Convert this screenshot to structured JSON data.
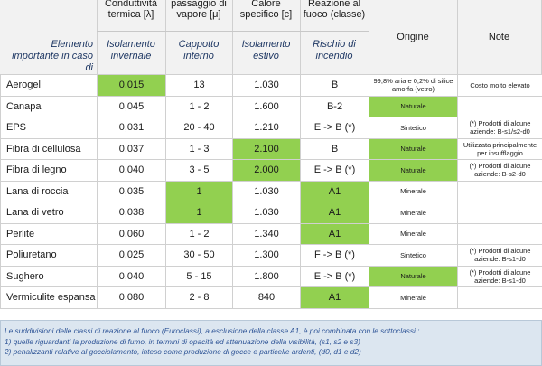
{
  "header": {
    "left_label": "Elemento importante in caso di",
    "columns": [
      {
        "top": "Conduttività termica [λ]",
        "bottom": "Isolamento invernale"
      },
      {
        "top": "passaggio di vapore [μ]",
        "bottom": "Cappotto interno"
      },
      {
        "top": "Calore specifico [c]",
        "bottom": "Isolamento estivo"
      },
      {
        "top": "Reazione al fuoco (classe)",
        "bottom": "Rischio di incendio"
      }
    ],
    "origine": "Origine",
    "note": "Note"
  },
  "rows": [
    {
      "name": "Aerogel",
      "cond": "0,015",
      "vap": "13",
      "cal": "1.030",
      "fuoco": "B",
      "origine": "99,8% aria e 0,2% di silice amorfa (vetro)",
      "note": "Costo molto elevato"
    },
    {
      "name": "Canapa",
      "cond": "0,045",
      "vap": "1 - 2",
      "cal": "1.600",
      "fuoco": "B-2",
      "origine": "Naturale",
      "note": ""
    },
    {
      "name": "EPS",
      "cond": "0,031",
      "vap": "20 - 40",
      "cal": "1.210",
      "fuoco": "E -> B (*)",
      "origine": "Sintetico",
      "note": "(*) Prodotti di alcune aziende: B-s1/s2-d0"
    },
    {
      "name": "Fibra di cellulosa",
      "cond": "0,037",
      "vap": "1 - 3",
      "cal": "2.100",
      "fuoco": "B",
      "origine": "Naturale",
      "note": "Utilizzata principalmente per insufflaggio"
    },
    {
      "name": "Fibra di legno",
      "cond": "0,040",
      "vap": "3 - 5",
      "cal": "2.000",
      "fuoco": "E -> B (*)",
      "origine": "Naturale",
      "note": "(*) Prodotti di alcune aziende: B-s2-d0"
    },
    {
      "name": "Lana di roccia",
      "cond": "0,035",
      "vap": "1",
      "cal": "1.030",
      "fuoco": "A1",
      "origine": "Minerale",
      "note": ""
    },
    {
      "name": "Lana di vetro",
      "cond": "0,038",
      "vap": "1",
      "cal": "1.030",
      "fuoco": "A1",
      "origine": "Minerale",
      "note": ""
    },
    {
      "name": "Perlite",
      "cond": "0,060",
      "vap": "1 - 2",
      "cal": "1.340",
      "fuoco": "A1",
      "origine": "Minerale",
      "note": ""
    },
    {
      "name": "Poliuretano",
      "cond": "0,025",
      "vap": "30 - 50",
      "cal": "1.300",
      "fuoco": "F -> B (*)",
      "origine": "Sintetico",
      "note": "(*) Prodotti di alcune aziende: B-s1-d0"
    },
    {
      "name": "Sughero",
      "cond": "0,040",
      "vap": "5 - 15",
      "cal": "1.800",
      "fuoco": "E -> B (*)",
      "origine": "Naturale",
      "note": "(*) Prodotti di alcune aziende: B-s1-d0"
    },
    {
      "name": "Vermiculite espansa",
      "cond": "0,080",
      "vap": "2 - 8",
      "cal": "840",
      "fuoco": "A1",
      "origine": "Minerale",
      "note": ""
    }
  ],
  "footnote": {
    "line1": "Le suddivisioni delle classi di reazione al fuoco (Euroclassi), a esclusione della classe A1, è poi combinata con le sottoclassi :",
    "line2": "1) quelle riguardanti la produzione di fumo, in termini di opacità ed attenuazione della visibilità, (s1, s2 e s3)",
    "line3": "2) penalizzanti relative al gocciolamento, inteso come produzione di gocce e particelle ardenti, (d0, d1 e d2)"
  },
  "colors": {
    "highlight": "#92d050",
    "header_bg": "#f2f2f2",
    "note_bg": "#dce6f0"
  }
}
